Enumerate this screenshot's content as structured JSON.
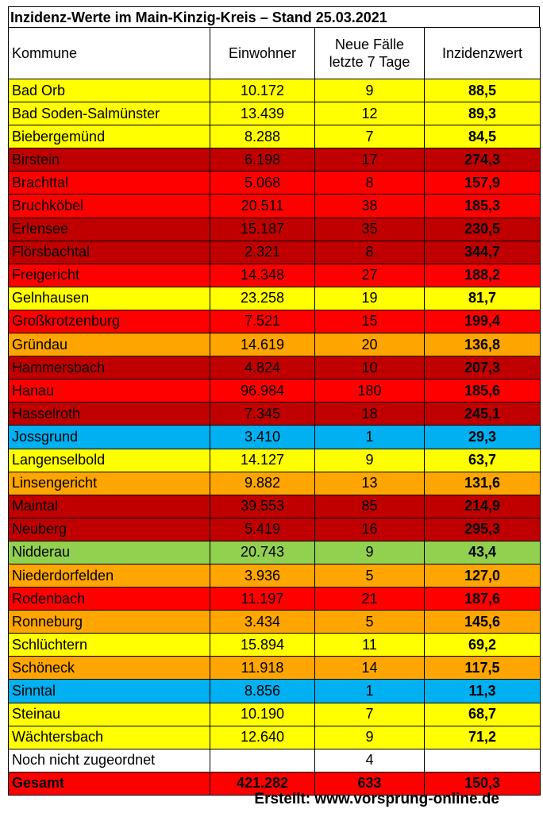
{
  "chart_data": {
    "type": "table",
    "title": "Inzidenz-Werte im Main-Kinzig-Kreis – Stand 25.03.2021",
    "columns": [
      "Kommune",
      "Einwohner",
      "Neue Fälle letzte 7 Tage",
      "Inzidenzwert"
    ],
    "column_lines": [
      [
        "Kommune"
      ],
      [
        "Einwohner"
      ],
      [
        "Neue Fälle",
        "letzte 7 Tage"
      ],
      [
        "Inzidenzwert"
      ]
    ],
    "rows": [
      {
        "kommune": "Bad Orb",
        "einwohner": "10.172",
        "faelle": "9",
        "inzidenz": "88,5",
        "color": "#ffff00"
      },
      {
        "kommune": "Bad Soden-Salmünster",
        "einwohner": "13.439",
        "faelle": "12",
        "inzidenz": "89,3",
        "color": "#ffff00"
      },
      {
        "kommune": "Biebergemünd",
        "einwohner": "8.288",
        "faelle": "7",
        "inzidenz": "84,5",
        "color": "#ffff00"
      },
      {
        "kommune": "Birstein",
        "einwohner": "6.198",
        "faelle": "17",
        "inzidenz": "274,3",
        "color": "#c00000"
      },
      {
        "kommune": "Brachttal",
        "einwohner": "5.068",
        "faelle": "8",
        "inzidenz": "157,9",
        "color": "#ff0000"
      },
      {
        "kommune": "Bruchköbel",
        "einwohner": "20.511",
        "faelle": "38",
        "inzidenz": "185,3",
        "color": "#ff0000"
      },
      {
        "kommune": "Erlensee",
        "einwohner": "15.187",
        "faelle": "35",
        "inzidenz": "230,5",
        "color": "#c00000"
      },
      {
        "kommune": "Flörsbachtal",
        "einwohner": "2.321",
        "faelle": "8",
        "inzidenz": "344,7",
        "color": "#c00000"
      },
      {
        "kommune": "Freigericht",
        "einwohner": "14.348",
        "faelle": "27",
        "inzidenz": "188,2",
        "color": "#ff0000"
      },
      {
        "kommune": "Gelnhausen",
        "einwohner": "23.258",
        "faelle": "19",
        "inzidenz": "81,7",
        "color": "#ffff00"
      },
      {
        "kommune": "Großkrotzenburg",
        "einwohner": "7.521",
        "faelle": "15",
        "inzidenz": "199,4",
        "color": "#ff0000"
      },
      {
        "kommune": "Gründau",
        "einwohner": "14.619",
        "faelle": "20",
        "inzidenz": "136,8",
        "color": "#ffa500"
      },
      {
        "kommune": "Hammersbach",
        "einwohner": "4.824",
        "faelle": "10",
        "inzidenz": "207,3",
        "color": "#c00000"
      },
      {
        "kommune": "Hanau",
        "einwohner": "96.984",
        "faelle": "180",
        "inzidenz": "185,6",
        "color": "#ff0000"
      },
      {
        "kommune": "Hasselroth",
        "einwohner": "7.345",
        "faelle": "18",
        "inzidenz": "245,1",
        "color": "#c00000"
      },
      {
        "kommune": "Jossgrund",
        "einwohner": "3.410",
        "faelle": "1",
        "inzidenz": "29,3",
        "color": "#00b0f0"
      },
      {
        "kommune": "Langenselbold",
        "einwohner": "14.127",
        "faelle": "9",
        "inzidenz": "63,7",
        "color": "#ffff00"
      },
      {
        "kommune": "Linsengericht",
        "einwohner": "9.882",
        "faelle": "13",
        "inzidenz": "131,6",
        "color": "#ffa500"
      },
      {
        "kommune": "Maintal",
        "einwohner": "39.553",
        "faelle": "85",
        "inzidenz": "214,9",
        "color": "#c00000"
      },
      {
        "kommune": "Neuberg",
        "einwohner": "5.419",
        "faelle": "16",
        "inzidenz": "295,3",
        "color": "#c00000"
      },
      {
        "kommune": "Nidderau",
        "einwohner": "20.743",
        "faelle": "9",
        "inzidenz": "43,4",
        "color": "#92d050"
      },
      {
        "kommune": "Niederdorfelden",
        "einwohner": "3.936",
        "faelle": "5",
        "inzidenz": "127,0",
        "color": "#ffa500"
      },
      {
        "kommune": "Rodenbach",
        "einwohner": "11.197",
        "faelle": "21",
        "inzidenz": "187,6",
        "color": "#ff0000"
      },
      {
        "kommune": "Ronneburg",
        "einwohner": "3.434",
        "faelle": "5",
        "inzidenz": "145,6",
        "color": "#ffa500"
      },
      {
        "kommune": "Schlüchtern",
        "einwohner": "15.894",
        "faelle": "11",
        "inzidenz": "69,2",
        "color": "#ffff00"
      },
      {
        "kommune": "Schöneck",
        "einwohner": "11.918",
        "faelle": "14",
        "inzidenz": "117,5",
        "color": "#ffa500"
      },
      {
        "kommune": "Sinntal",
        "einwohner": "8.856",
        "faelle": "1",
        "inzidenz": "11,3",
        "color": "#00b0f0"
      },
      {
        "kommune": "Steinau",
        "einwohner": "10.190",
        "faelle": "7",
        "inzidenz": "68,7",
        "color": "#ffff00"
      },
      {
        "kommune": "Wächtersbach",
        "einwohner": "12.640",
        "faelle": "9",
        "inzidenz": "71,2",
        "color": "#ffff00"
      },
      {
        "kommune": "Noch nicht zugeordnet",
        "einwohner": "",
        "faelle": "4",
        "inzidenz": "",
        "color": "#ffffff"
      },
      {
        "kommune": "Gesamt",
        "einwohner": "421.282",
        "faelle": "633",
        "inzidenz": "150,3",
        "color": "#ff0000",
        "bold": true
      }
    ]
  },
  "credit": "Erstellt: www.vorsprung-online.de"
}
